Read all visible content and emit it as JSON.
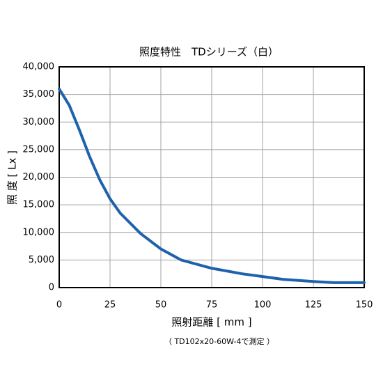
{
  "chart_data": {
    "type": "line",
    "title": "照度特性　TDシリーズ（白）",
    "x_label": "照射距離 [ mm ]",
    "y_label": "照 度 [ Lx ]",
    "note": "（ TD102x20-60W-4で測定 ）",
    "x": [
      0,
      5,
      10,
      15,
      20,
      25,
      30,
      40,
      50,
      60,
      75,
      90,
      100,
      110,
      125,
      135,
      150
    ],
    "series": [
      {
        "name": "TD",
        "color": "#1f62ac",
        "values": [
          36000,
          33000,
          28500,
          23700,
          19500,
          16100,
          13500,
          9800,
          7000,
          5000,
          3500,
          2500,
          2000,
          1500,
          1100,
          900,
          900
        ]
      }
    ],
    "xlim": [
      0,
      150
    ],
    "xticks": [
      0,
      25,
      50,
      75,
      100,
      125,
      150
    ],
    "ylim": [
      0,
      40000
    ],
    "yticks": [
      0,
      {
        "value": 5000,
        "label": "5,000"
      },
      {
        "value": 10000,
        "label": "10,000"
      },
      {
        "value": 15000,
        "label": "15,000"
      },
      {
        "value": 20000,
        "label": "20,000"
      },
      {
        "value": 25000,
        "label": "25,000"
      },
      {
        "value": 30000,
        "label": "30,000"
      },
      {
        "value": 35000,
        "label": "35,000"
      },
      {
        "value": 40000,
        "label": "40,000"
      }
    ],
    "grid": true
  }
}
